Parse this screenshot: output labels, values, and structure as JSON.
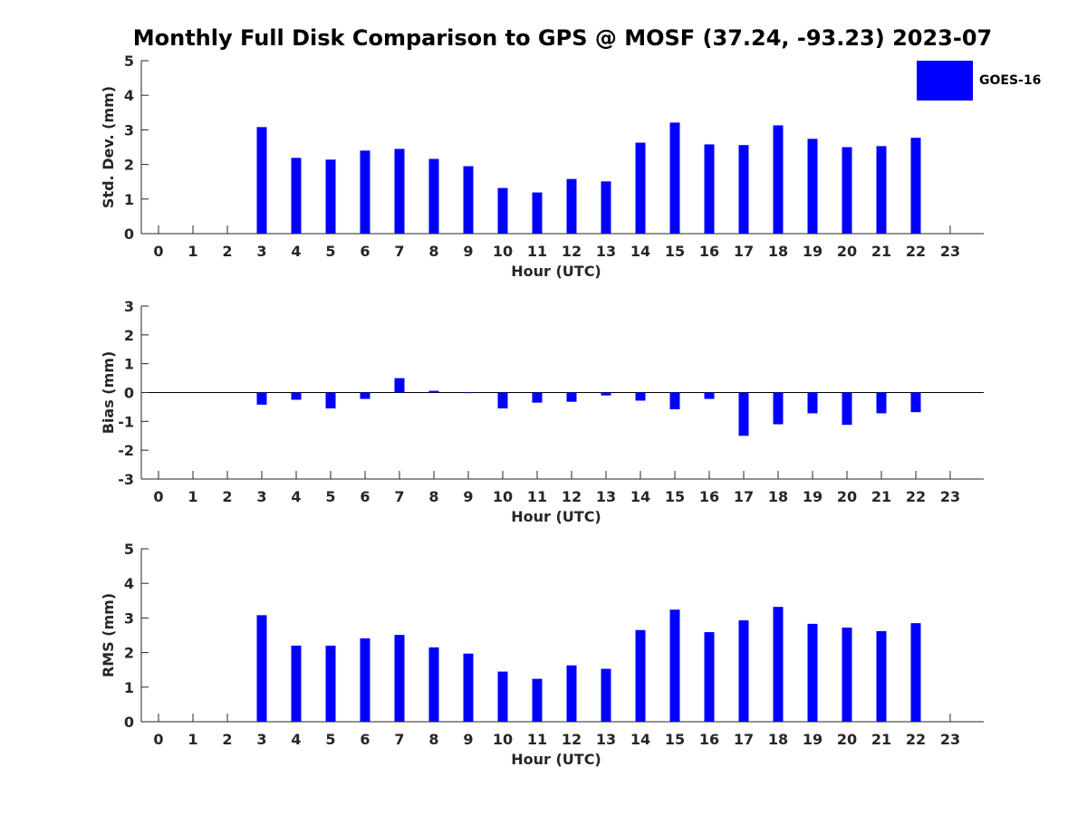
{
  "title": "Monthly Full Disk Comparison to GPS @ MOSF (37.24, -93.23) 2023-07",
  "legend": {
    "label": "GOES-16",
    "color": "#0000ff",
    "placement": "top-right"
  },
  "chart_data": [
    {
      "type": "bar",
      "name": "std-dev",
      "xlabel": "Hour (UTC)",
      "ylabel": "Std. Dev. (mm)",
      "ylim": [
        0,
        5
      ],
      "yticks": [
        0,
        1,
        2,
        3,
        4,
        5
      ],
      "categories": [
        0,
        1,
        2,
        3,
        4,
        5,
        6,
        7,
        8,
        9,
        10,
        11,
        12,
        13,
        14,
        15,
        16,
        17,
        18,
        19,
        20,
        21,
        22,
        23
      ],
      "series": [
        {
          "name": "GOES-16",
          "color": "#0000ff",
          "values": [
            null,
            null,
            null,
            3.08,
            2.19,
            2.14,
            2.4,
            2.45,
            2.16,
            1.95,
            1.32,
            1.19,
            1.58,
            1.51,
            2.63,
            3.21,
            2.58,
            2.56,
            3.13,
            2.74,
            2.5,
            2.53,
            2.77,
            null
          ]
        }
      ]
    },
    {
      "type": "bar",
      "name": "bias",
      "xlabel": "Hour (UTC)",
      "ylabel": "Bias (mm)",
      "ylim": [
        -3,
        3
      ],
      "yticks": [
        -3,
        -2,
        -1,
        0,
        1,
        2,
        3
      ],
      "zero_line": true,
      "categories": [
        0,
        1,
        2,
        3,
        4,
        5,
        6,
        7,
        8,
        9,
        10,
        11,
        12,
        13,
        14,
        15,
        16,
        17,
        18,
        19,
        20,
        21,
        22,
        23
      ],
      "series": [
        {
          "name": "GOES-16",
          "color": "#0000ff",
          "values": [
            null,
            null,
            null,
            -0.42,
            -0.25,
            -0.55,
            -0.22,
            0.5,
            0.06,
            -0.02,
            -0.55,
            -0.35,
            -0.32,
            -0.1,
            -0.28,
            -0.58,
            -0.22,
            -1.5,
            -1.1,
            -0.72,
            -1.12,
            -0.72,
            -0.68,
            null
          ]
        }
      ]
    },
    {
      "type": "bar",
      "name": "rms",
      "xlabel": "Hour (UTC)",
      "ylabel": "RMS (mm)",
      "ylim": [
        0,
        5
      ],
      "yticks": [
        0,
        1,
        2,
        3,
        4,
        5
      ],
      "categories": [
        0,
        1,
        2,
        3,
        4,
        5,
        6,
        7,
        8,
        9,
        10,
        11,
        12,
        13,
        14,
        15,
        16,
        17,
        18,
        19,
        20,
        21,
        22,
        23
      ],
      "series": [
        {
          "name": "GOES-16",
          "color": "#0000ff",
          "values": [
            null,
            null,
            null,
            3.08,
            2.2,
            2.2,
            2.41,
            2.51,
            2.15,
            1.97,
            1.45,
            1.24,
            1.63,
            1.53,
            2.65,
            3.24,
            2.59,
            2.93,
            3.32,
            2.83,
            2.72,
            2.62,
            2.85,
            null
          ]
        }
      ]
    }
  ]
}
